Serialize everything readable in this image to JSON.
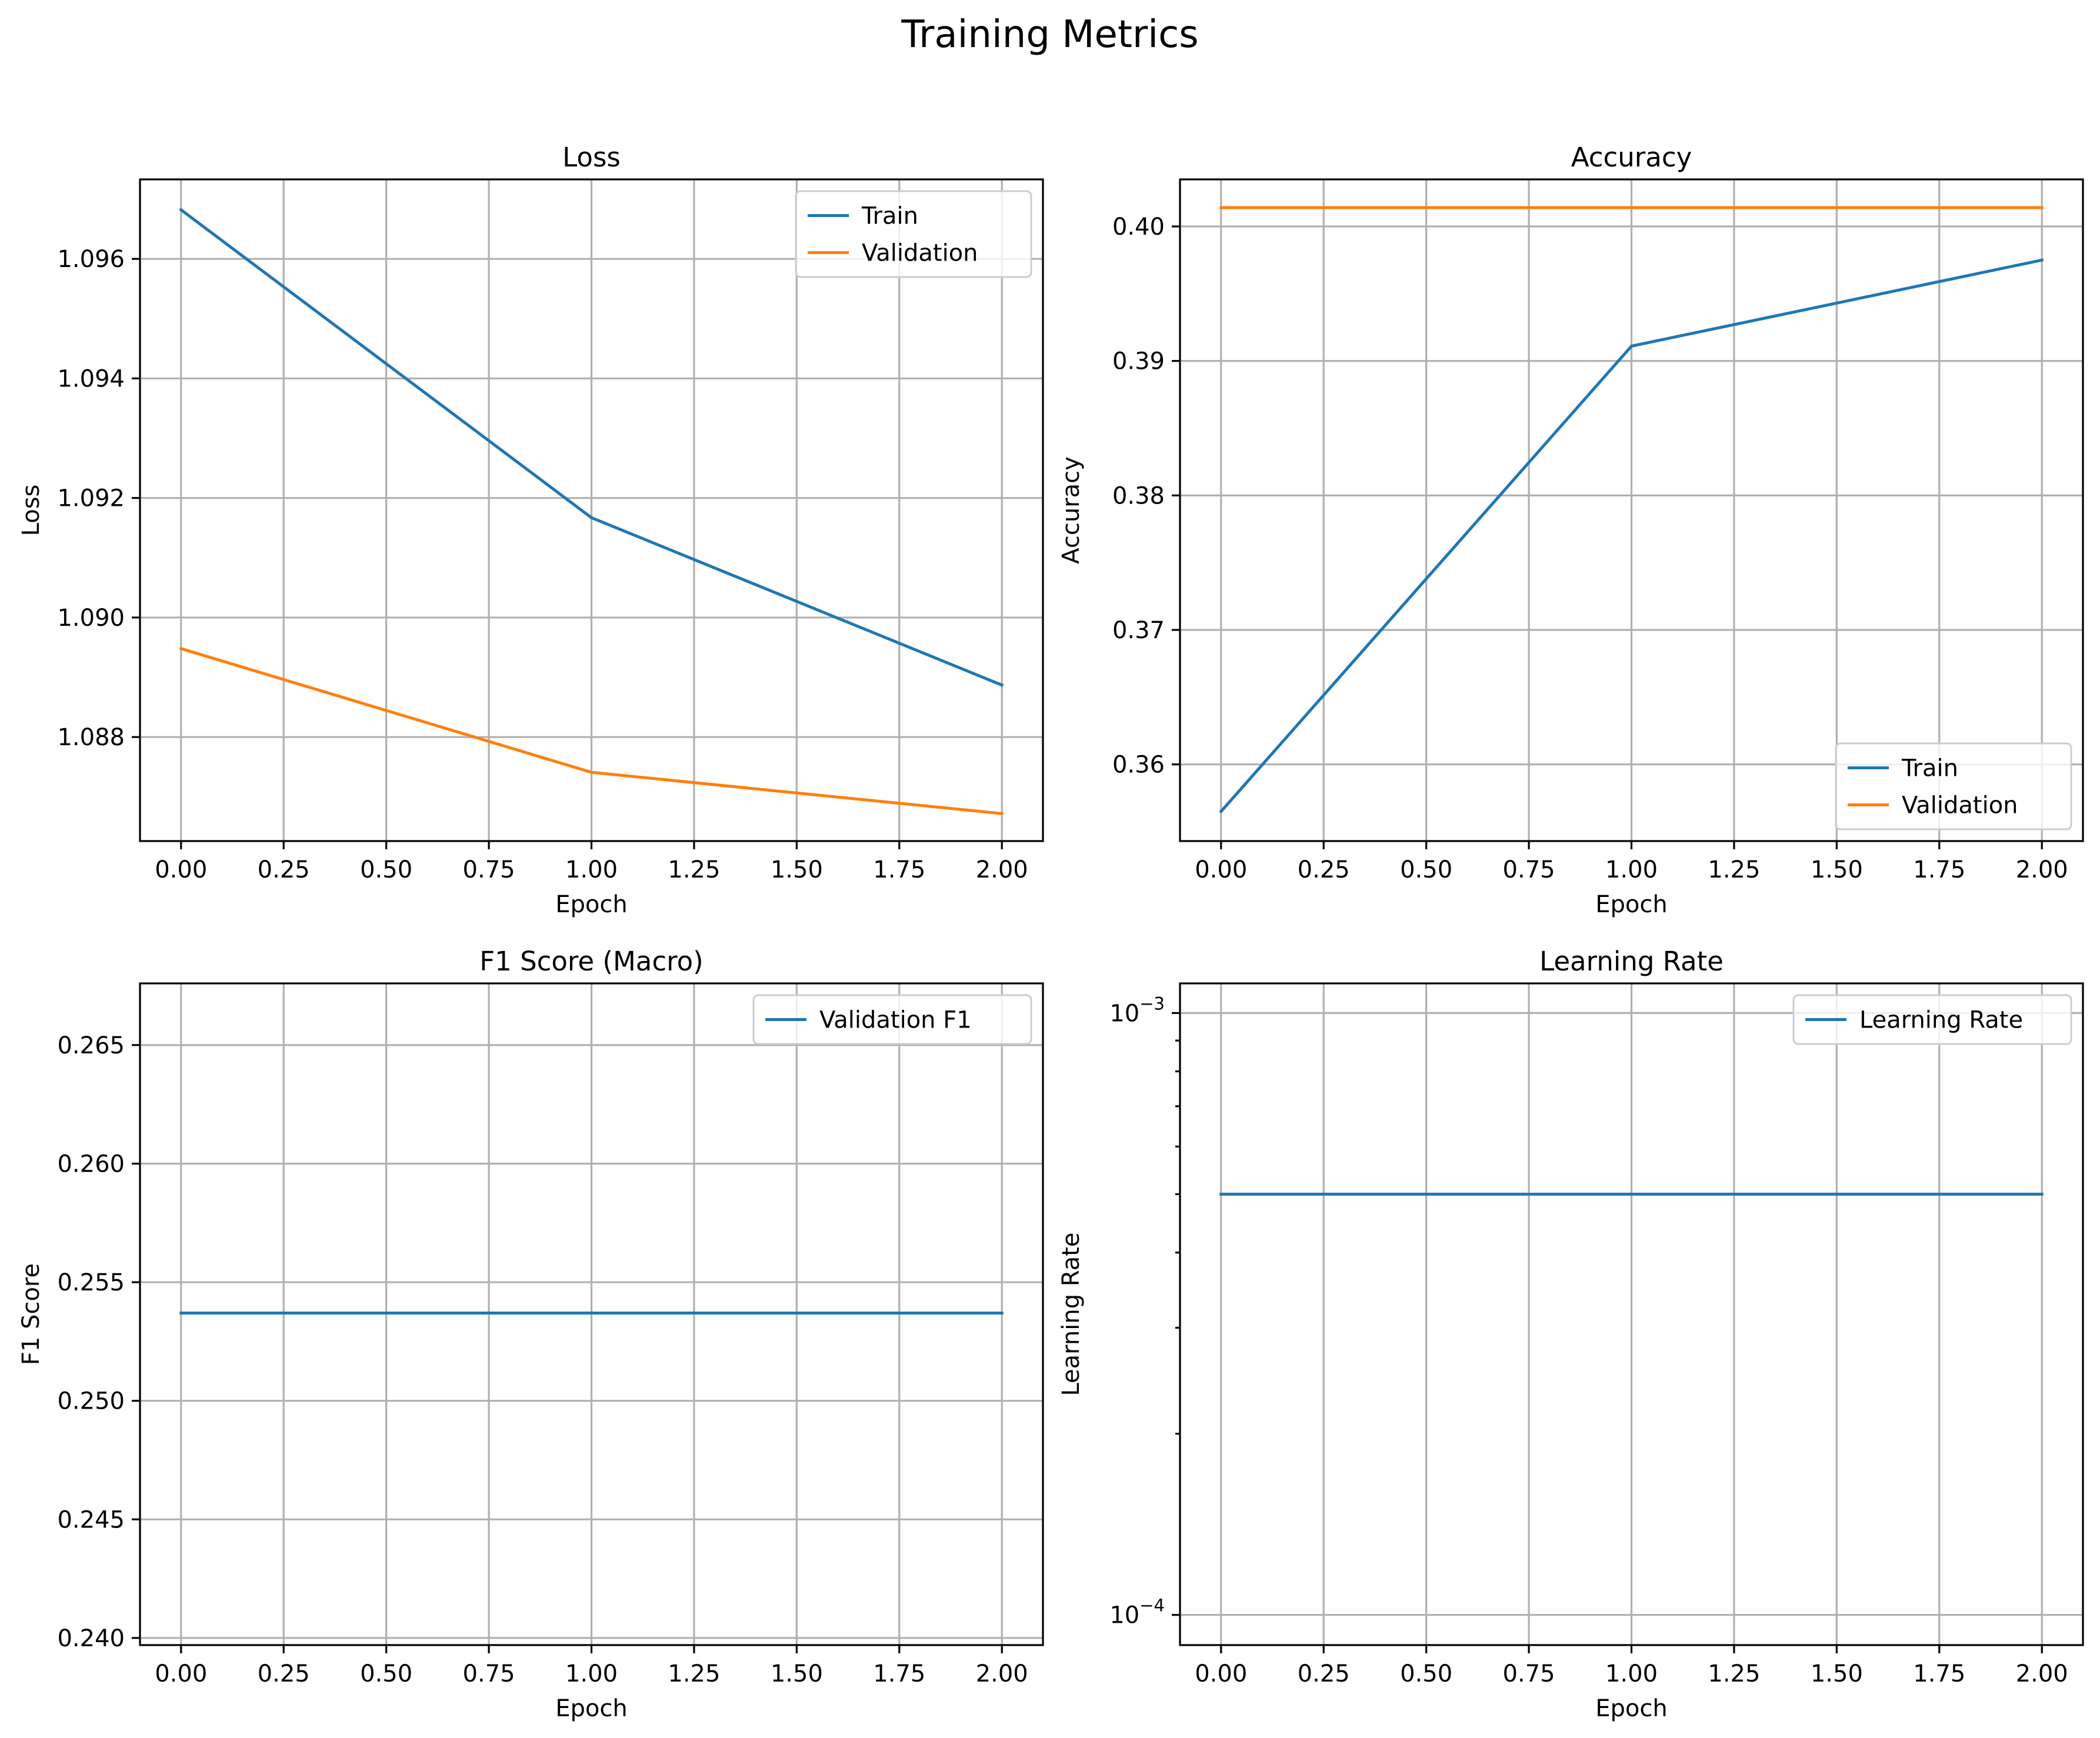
{
  "figure": {
    "title": "Training Metrics"
  },
  "colors": {
    "train": "#1f77b4",
    "validation": "#ff7f0e",
    "grid": "#b0b0b0"
  },
  "chart_data": [
    {
      "id": "loss",
      "type": "line",
      "title": "Loss",
      "xlabel": "Epoch",
      "ylabel": "Loss",
      "x": [
        0,
        1,
        2
      ],
      "xlim": [
        -0.1,
        2.1
      ],
      "ylim": [
        1.08626,
        1.09733
      ],
      "xticks": [
        0,
        0.25,
        0.5,
        0.75,
        1,
        1.25,
        1.5,
        1.75,
        2
      ],
      "xtick_labels": [
        "0.00",
        "0.25",
        "0.50",
        "0.75",
        "1.00",
        "1.25",
        "1.50",
        "1.75",
        "2.00"
      ],
      "yticks": [
        1.088,
        1.09,
        1.092,
        1.094,
        1.096
      ],
      "ytick_labels": [
        "1.088",
        "1.090",
        "1.092",
        "1.094",
        "1.096"
      ],
      "yscale": "linear",
      "grid": true,
      "legend": "upper right",
      "series": [
        {
          "name": "Train",
          "color": "#1f77b4",
          "values": [
            1.09682,
            1.09167,
            1.08887
          ]
        },
        {
          "name": "Validation",
          "color": "#ff7f0e",
          "values": [
            1.08948,
            1.08741,
            1.08672
          ]
        }
      ]
    },
    {
      "id": "accuracy",
      "type": "line",
      "title": "Accuracy",
      "xlabel": "Epoch",
      "ylabel": "Accuracy",
      "x": [
        0,
        1,
        2
      ],
      "xlim": [
        -0.1,
        2.1
      ],
      "ylim": [
        0.3543,
        0.4035
      ],
      "xticks": [
        0,
        0.25,
        0.5,
        0.75,
        1,
        1.25,
        1.5,
        1.75,
        2
      ],
      "xtick_labels": [
        "0.00",
        "0.25",
        "0.50",
        "0.75",
        "1.00",
        "1.25",
        "1.50",
        "1.75",
        "2.00"
      ],
      "yticks": [
        0.36,
        0.37,
        0.38,
        0.39,
        0.4
      ],
      "ytick_labels": [
        "0.36",
        "0.37",
        "0.38",
        "0.39",
        "0.40"
      ],
      "yscale": "linear",
      "grid": true,
      "legend": "lower right",
      "series": [
        {
          "name": "Train",
          "color": "#1f77b4",
          "values": [
            0.3565,
            0.3911,
            0.3975
          ]
        },
        {
          "name": "Validation",
          "color": "#ff7f0e",
          "values": [
            0.4014,
            0.4014,
            0.4014
          ]
        }
      ]
    },
    {
      "id": "f1",
      "type": "line",
      "title": "F1 Score (Macro)",
      "xlabel": "Epoch",
      "ylabel": "F1 Score",
      "x": [
        0,
        1,
        2
      ],
      "xlim": [
        -0.1,
        2.1
      ],
      "ylim": [
        0.2397,
        0.2676
      ],
      "xticks": [
        0,
        0.25,
        0.5,
        0.75,
        1,
        1.25,
        1.5,
        1.75,
        2
      ],
      "xtick_labels": [
        "0.00",
        "0.25",
        "0.50",
        "0.75",
        "1.00",
        "1.25",
        "1.50",
        "1.75",
        "2.00"
      ],
      "yticks": [
        0.24,
        0.245,
        0.25,
        0.255,
        0.26,
        0.265
      ],
      "ytick_labels": [
        "0.240",
        "0.245",
        "0.250",
        "0.255",
        "0.260",
        "0.265"
      ],
      "yscale": "linear",
      "grid": true,
      "legend": "upper right",
      "series": [
        {
          "name": "Validation F1",
          "color": "#1f77b4",
          "values": [
            0.2537,
            0.2537,
            0.2537
          ]
        }
      ]
    },
    {
      "id": "lr",
      "type": "line",
      "title": "Learning Rate",
      "xlabel": "Epoch",
      "ylabel": "Learning Rate",
      "x": [
        0,
        1,
        2
      ],
      "xlim": [
        -0.1,
        2.1
      ],
      "ylim": [
        8.91e-05,
        0.00112
      ],
      "xticks": [
        0,
        0.25,
        0.5,
        0.75,
        1,
        1.25,
        1.5,
        1.75,
        2
      ],
      "xtick_labels": [
        "0.00",
        "0.25",
        "0.50",
        "0.75",
        "1.00",
        "1.25",
        "1.50",
        "1.75",
        "2.00"
      ],
      "yticks": [
        0.0001,
        0.001
      ],
      "ytick_labels": [
        {
          "base": "10",
          "exp": "−4"
        },
        {
          "base": "10",
          "exp": "−3"
        }
      ],
      "yminor_ticks": [
        0.0002,
        0.0003,
        0.0004,
        0.0005,
        0.0006,
        0.0007,
        0.0008,
        0.0009
      ],
      "yscale": "log",
      "grid": true,
      "legend": "upper right",
      "series": [
        {
          "name": "Learning Rate",
          "color": "#1f77b4",
          "values": [
            0.0005,
            0.0005,
            0.0005
          ]
        }
      ]
    }
  ]
}
